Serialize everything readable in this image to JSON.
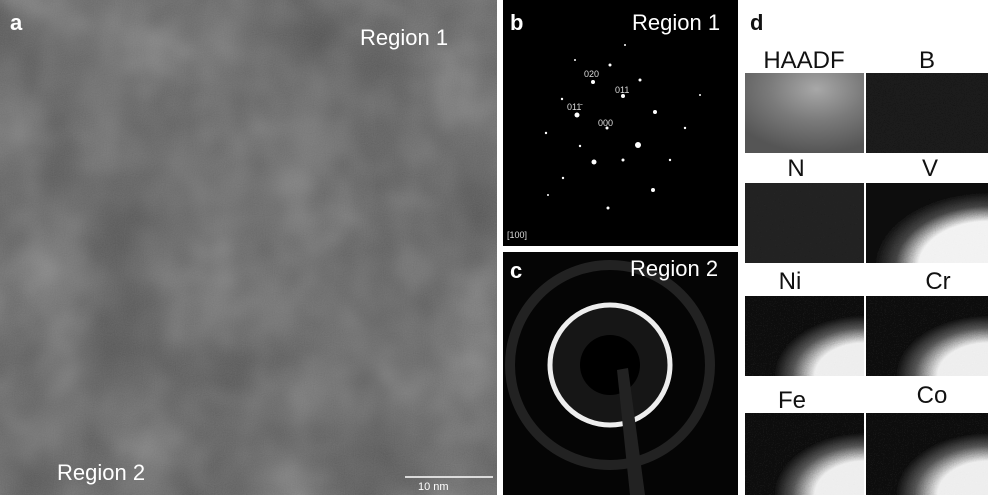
{
  "panels": {
    "a": {
      "label": "a",
      "region_top": "Region 1",
      "region_bottom": "Region 2",
      "scale_bar": "10 nm"
    },
    "b": {
      "label": "b",
      "region": "Region 1",
      "indices": [
        "020",
        "011",
        "011̄",
        "000"
      ],
      "zone_axis": "[100]"
    },
    "c": {
      "label": "c",
      "region": "Region 2"
    },
    "d": {
      "label": "d",
      "maps": [
        "HAADF",
        "B",
        "N",
        "V",
        "Ni",
        "Cr",
        "Fe",
        "Co"
      ]
    }
  }
}
